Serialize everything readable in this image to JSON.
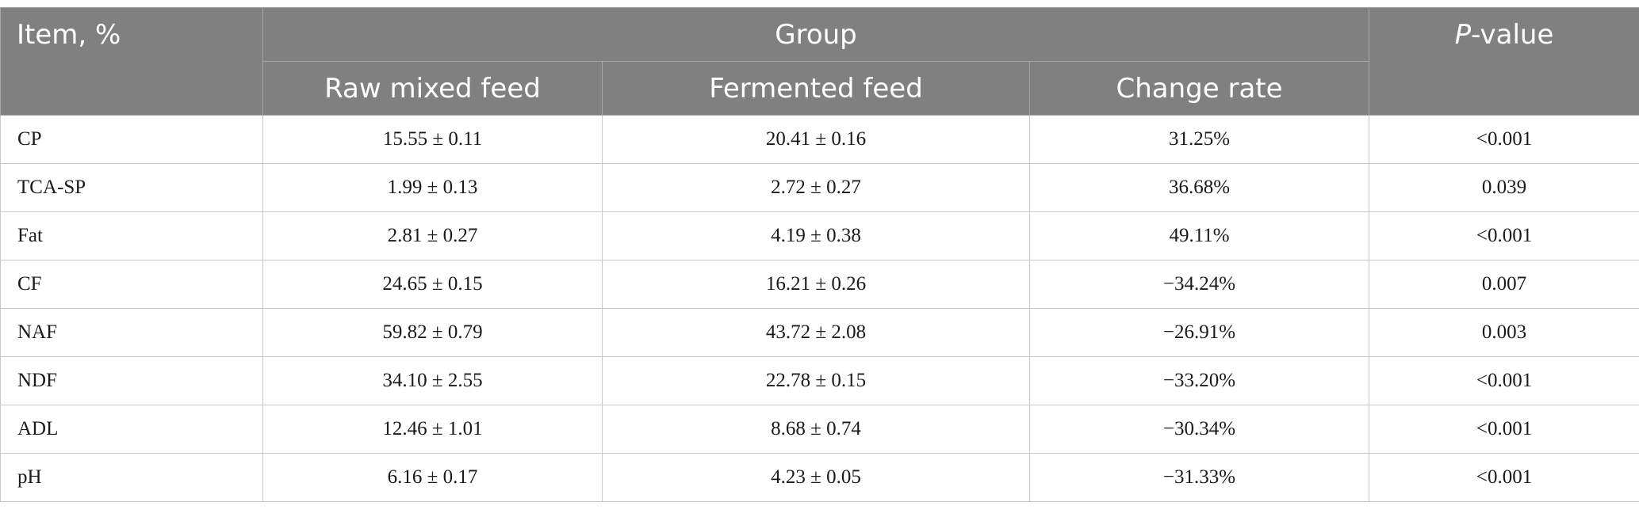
{
  "header": {
    "item": "Item, %",
    "group": "Group",
    "pvalue_italic": "P",
    "pvalue_rest": "-value",
    "subcolumns": [
      "Raw mixed feed",
      "Fermented feed",
      "Change rate"
    ]
  },
  "rows": [
    {
      "item": "CP",
      "raw": "15.55 ± 0.11",
      "fermented": "20.41 ± 0.16",
      "change": "31.25%",
      "p": "<0.001"
    },
    {
      "item": "TCA-SP",
      "raw": "1.99 ± 0.13",
      "fermented": "2.72 ± 0.27",
      "change": "36.68%",
      "p": "0.039"
    },
    {
      "item": "Fat",
      "raw": "2.81 ± 0.27",
      "fermented": "4.19 ± 0.38",
      "change": "49.11%",
      "p": "<0.001"
    },
    {
      "item": "CF",
      "raw": "24.65 ± 0.15",
      "fermented": "16.21 ± 0.26",
      "change": "−34.24%",
      "p": "0.007"
    },
    {
      "item": "NAF",
      "raw": "59.82 ± 0.79",
      "fermented": "43.72 ± 2.08",
      "change": "−26.91%",
      "p": "0.003"
    },
    {
      "item": "NDF",
      "raw": "34.10 ± 2.55",
      "fermented": "22.78 ± 0.15",
      "change": "−33.20%",
      "p": "<0.001"
    },
    {
      "item": "ADL",
      "raw": "12.46 ± 1.01",
      "fermented": "8.68 ± 0.74",
      "change": "−30.34%",
      "p": "<0.001"
    },
    {
      "item": "pH",
      "raw": "6.16 ± 0.17",
      "fermented": "4.23 ± 0.05",
      "change": "−31.33%",
      "p": "<0.001"
    }
  ]
}
